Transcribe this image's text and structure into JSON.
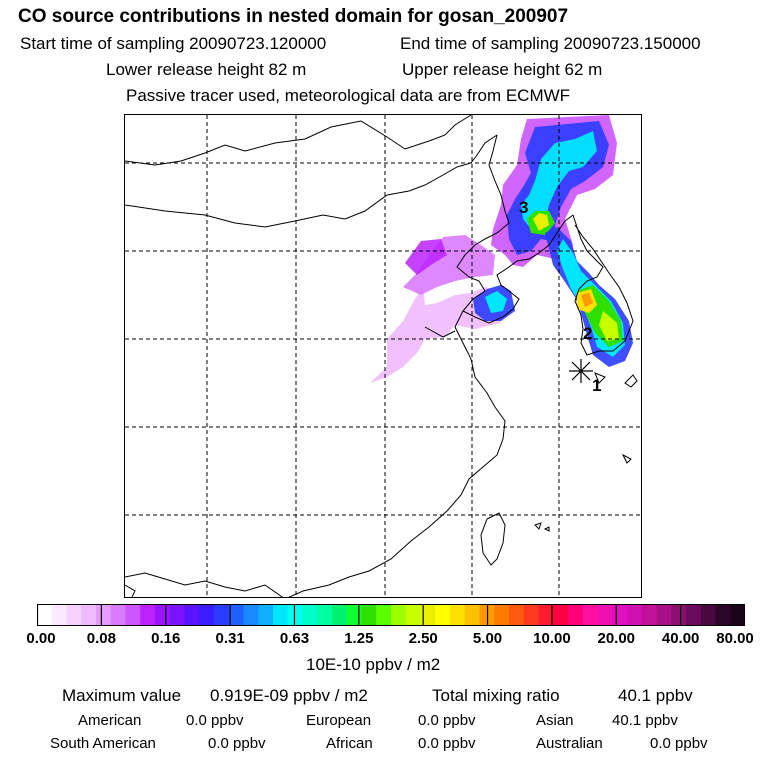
{
  "title": "CO  source contributions in nested domain for gosan_200907",
  "sampling": {
    "start": "Start time of sampling 20090723.120000",
    "end": "End time of sampling 20090723.150000"
  },
  "release": {
    "lower": "Lower release height   82 m",
    "upper": "Upper release height   62 m"
  },
  "note": "Passive tracer used, meteorological data are from ECMWF",
  "map": {
    "point_labels": [
      "1",
      "2",
      "3"
    ],
    "receptor_marker": "asterisk"
  },
  "colorbar": {
    "ticks": [
      "0.00",
      "0.08",
      "0.16",
      "0.31",
      "0.63",
      "1.25",
      "2.50",
      "5.00",
      "10.00",
      "20.00",
      "40.00",
      "80.00"
    ],
    "units": "10E-10 ppbv / m2",
    "colors": [
      "#ffffff",
      "#fbe9ff",
      "#f6d3ff",
      "#efbaff",
      "#e49cff",
      "#d97bff",
      "#cc55ff",
      "#bb22ff",
      "#9a14ff",
      "#7a14ff",
      "#5a14ff",
      "#3a1cff",
      "#2a3cff",
      "#2060ff",
      "#1a88ff",
      "#10b0ff",
      "#00e6ff",
      "#00ffee",
      "#00ffc8",
      "#00ffa0",
      "#00f070",
      "#10ff30",
      "#2ee000",
      "#5aff00",
      "#9aff00",
      "#c8ff00",
      "#e8f000",
      "#ffff00",
      "#ffe000",
      "#ffc000",
      "#ff9a00",
      "#ff7a00",
      "#ff5a10",
      "#ff3a20",
      "#ff1a30",
      "#ff0040",
      "#ff007a",
      "#ff10a0",
      "#f010b0",
      "#e010c0",
      "#d010b0",
      "#c0109a",
      "#a81088",
      "#8a1070",
      "#6a0a5a",
      "#4a0840",
      "#2c0628",
      "#1a0418"
    ]
  },
  "footer": {
    "max_label": "Maximum value",
    "max_value": "0.919E-09 ppbv / m2",
    "total_label": "Total mixing ratio",
    "total_value": "40.1 ppbv",
    "regions": {
      "american": {
        "label": "American",
        "value": "0.0 ppbv"
      },
      "european": {
        "label": "European",
        "value": "0.0 ppbv"
      },
      "asian": {
        "label": "Asian",
        "value": "40.1 ppbv"
      },
      "south_american": {
        "label": "South American",
        "value": "0.0 ppbv"
      },
      "african": {
        "label": "African",
        "value": "0.0 ppbv"
      },
      "australian": {
        "label": "Australian",
        "value": "0.0 ppbv"
      }
    }
  }
}
